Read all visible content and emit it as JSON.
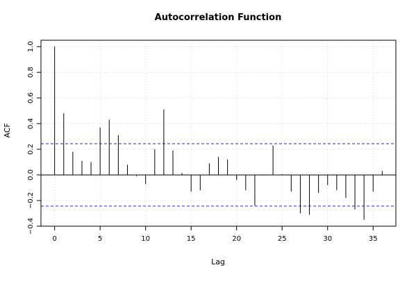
{
  "chart_data": {
    "type": "bar",
    "title": "Autocorrelation Function",
    "xlabel": "Lag",
    "ylabel": "ACF",
    "xlim": [
      -1.5,
      37.5
    ],
    "ylim": [
      -0.4,
      1.05
    ],
    "x_ticks": [
      0,
      5,
      10,
      15,
      20,
      25,
      30,
      35
    ],
    "y_ticks": [
      -0.4,
      -0.2,
      0.0,
      0.2,
      0.4,
      0.6,
      0.8,
      1.0
    ],
    "x_tick_labels": [
      "0",
      "5",
      "10",
      "15",
      "20",
      "25",
      "30",
      "35"
    ],
    "y_tick_labels": [
      "−0.4",
      "−0.2",
      "0.0",
      "0.2",
      "0.4",
      "0.6",
      "0.8",
      "1.0"
    ],
    "grid": true,
    "confidence_bounds": [
      0.243,
      -0.243
    ],
    "series": [
      {
        "lags": [
          0,
          1,
          2,
          3,
          4,
          5,
          6,
          7,
          8,
          9,
          10,
          11,
          12,
          13,
          14,
          15,
          16,
          17,
          18,
          19,
          20,
          21,
          22,
          23,
          24,
          25,
          26,
          27,
          28,
          29,
          30,
          31,
          32,
          33,
          34,
          35,
          36
        ],
        "values": [
          1.0,
          0.48,
          0.18,
          0.11,
          0.1,
          0.37,
          0.43,
          0.31,
          0.08,
          -0.01,
          -0.07,
          0.2,
          0.51,
          0.19,
          0.015,
          -0.13,
          -0.12,
          0.09,
          0.14,
          0.12,
          -0.04,
          -0.12,
          -0.24,
          -0.005,
          0.23,
          0.005,
          -0.13,
          -0.3,
          -0.31,
          -0.14,
          -0.08,
          -0.12,
          -0.18,
          -0.27,
          -0.35,
          -0.13,
          0.03
        ]
      }
    ],
    "colors": {
      "bars": "#000000",
      "bounds": "#2222cc",
      "grid": "#d3d3d3",
      "axis": "#000000"
    }
  }
}
